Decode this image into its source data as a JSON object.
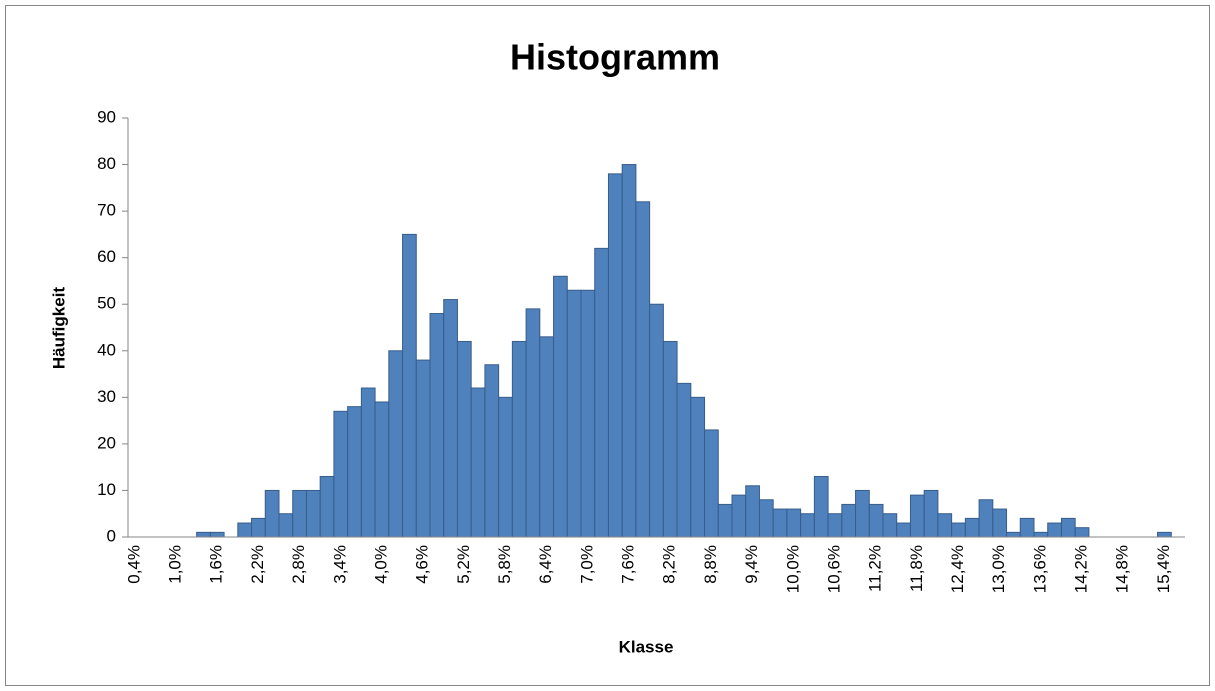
{
  "chart_data": {
    "type": "bar",
    "title": "Histogramm",
    "x_label": "Klasse",
    "y_label": "Häufigkeit",
    "categories": [
      "0,4%",
      null,
      null,
      "1,0%",
      null,
      null,
      "1,6%",
      null,
      null,
      "2,2%",
      null,
      null,
      "2,8%",
      null,
      null,
      "3,4%",
      null,
      null,
      "4,0%",
      null,
      null,
      "4,6%",
      null,
      null,
      "5,2%",
      null,
      null,
      "5,8%",
      null,
      null,
      "6,4%",
      null,
      null,
      "7,0%",
      null,
      null,
      "7,6%",
      null,
      null,
      "8,2%",
      null,
      null,
      "8,8%",
      null,
      null,
      "9,4%",
      null,
      null,
      "10,0%",
      null,
      null,
      "10,6%",
      null,
      null,
      "11,2%",
      null,
      null,
      "11,8%",
      null,
      null,
      "12,4%",
      null,
      null,
      "13,0%",
      null,
      null,
      "13,6%",
      null,
      null,
      "14,2%",
      null,
      null,
      "14,8%",
      null,
      null,
      "15,4%",
      null
    ],
    "values": [
      0,
      0,
      0,
      0,
      0,
      1,
      1,
      0,
      3,
      4,
      10,
      5,
      10,
      10,
      13,
      27,
      28,
      32,
      29,
      40,
      65,
      38,
      48,
      51,
      42,
      32,
      37,
      30,
      42,
      49,
      43,
      56,
      53,
      53,
      62,
      78,
      80,
      72,
      50,
      42,
      33,
      30,
      23,
      7,
      9,
      11,
      8,
      6,
      6,
      5,
      13,
      5,
      7,
      10,
      7,
      5,
      3,
      9,
      10,
      5,
      3,
      4,
      8,
      6,
      1,
      4,
      1,
      3,
      4,
      2,
      0,
      0,
      0,
      0,
      0,
      1,
      0
    ],
    "color": "#4f81bd",
    "ylim": [
      0,
      90
    ],
    "yticks": [
      0,
      10,
      20,
      30,
      40,
      50,
      60,
      70,
      80,
      90
    ],
    "grid": false
  }
}
